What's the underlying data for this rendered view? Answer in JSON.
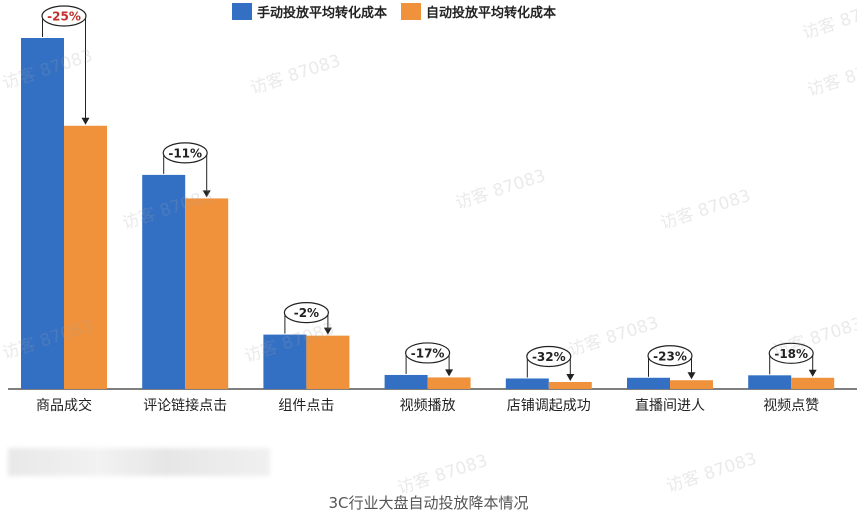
{
  "chart_data": {
    "type": "bar",
    "categories": [
      "商品成交",
      "评论链接点击",
      "组件点击",
      "视频播放",
      "店铺调起成功",
      "直播间进人",
      "视频点赞"
    ],
    "series": [
      {
        "name": "手动投放平均转化成本",
        "color": "#3370c4",
        "values": [
          100,
          61,
          15.5,
          4,
          3,
          3.2,
          3.9
        ]
      },
      {
        "name": "自动投放平均转化成本",
        "color": "#f0923c",
        "values": [
          75,
          54.3,
          15.2,
          3.3,
          2,
          2.5,
          3.2
        ]
      }
    ],
    "change_labels": [
      "-25%",
      "-11%",
      "-2%",
      "-17%",
      "-32%",
      "-23%",
      "-18%"
    ],
    "highlight_color": "#c0312b",
    "ylim": [
      0,
      100
    ],
    "legend_position": "top",
    "grid": false
  },
  "watermark_text": "访客 87083",
  "caption": "3C行业大盘自动投放降本情况"
}
